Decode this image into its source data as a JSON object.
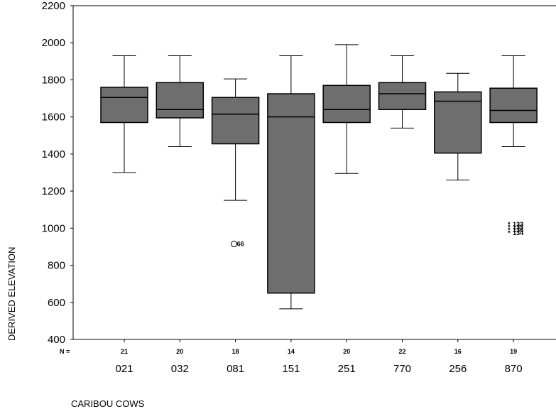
{
  "chart_data": {
    "type": "boxplot",
    "title": "",
    "xlabel": "CARIBOU COWS",
    "ylabel": "DERIVED ELEVATION",
    "ylim": [
      400,
      2200
    ],
    "yticks": [
      400,
      600,
      800,
      1000,
      1200,
      1400,
      1600,
      1800,
      2000,
      2200
    ],
    "n_prefix": "N =",
    "grid": false,
    "categories": [
      "021",
      "032",
      "081",
      "151",
      "251",
      "770",
      "256",
      "870"
    ],
    "counts": [
      "21",
      "20",
      "18",
      "14",
      "20",
      "22",
      "16",
      "19"
    ],
    "boxes": [
      {
        "category": "021",
        "min": 1300,
        "q1": 1570,
        "median": 1705,
        "q3": 1760,
        "max": 1930
      },
      {
        "category": "032",
        "min": 1440,
        "q1": 1595,
        "median": 1640,
        "q3": 1785,
        "max": 1930
      },
      {
        "category": "081",
        "min": 1150,
        "q1": 1455,
        "median": 1615,
        "q3": 1705,
        "max": 1805
      },
      {
        "category": "151",
        "min": 565,
        "q1": 650,
        "median": 1600,
        "q3": 1725,
        "max": 1930
      },
      {
        "category": "251",
        "min": 1295,
        "q1": 1570,
        "median": 1640,
        "q3": 1770,
        "max": 1990
      },
      {
        "category": "770",
        "min": 1540,
        "q1": 1640,
        "median": 1725,
        "q3": 1785,
        "max": 1930
      },
      {
        "category": "256",
        "min": 1260,
        "q1": 1405,
        "median": 1685,
        "q3": 1735,
        "max": 1835
      },
      {
        "category": "870",
        "min": 1440,
        "q1": 1570,
        "median": 1635,
        "q3": 1755,
        "max": 1930
      }
    ],
    "outliers": [
      {
        "category": "081",
        "value": 915,
        "marker": "circle",
        "label": "66"
      },
      {
        "category": "870",
        "value": 1020,
        "marker": "star",
        "label": "133"
      },
      {
        "category": "870",
        "value": 1005,
        "marker": "star",
        "label": "135"
      },
      {
        "category": "870",
        "value": 990,
        "marker": "star",
        "label": "136"
      },
      {
        "category": "870",
        "value": 975,
        "marker": "star",
        "label": "134"
      }
    ],
    "colors": {
      "box_fill": "#6e6e6e",
      "line": "#000000",
      "background": "#ffffff"
    }
  }
}
